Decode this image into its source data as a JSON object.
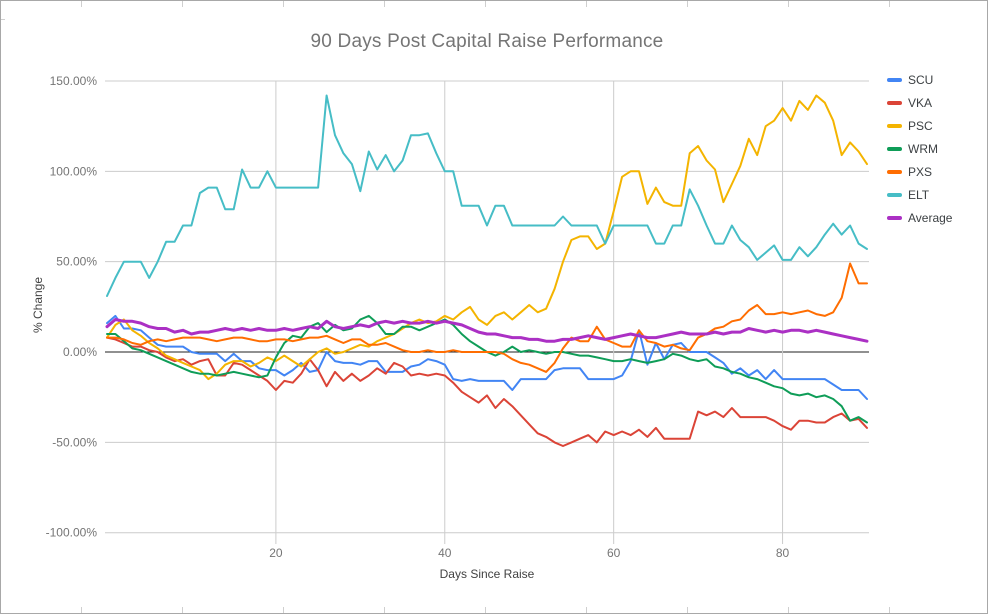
{
  "window": {
    "background": "#ffffff",
    "border_color": "#a8a8a8"
  },
  "chart": {
    "title": "90 Days Post Capital Raise Performance",
    "x_axis_title": "Days Since Raise",
    "y_axis_title": "% Change"
  },
  "colors": {
    "gridline": "#cccccc",
    "zero_line": "#212121",
    "title_text": "#757575",
    "tick_text": "#757575",
    "axis_title_text": "#424242",
    "legend_text": "#3c4043"
  },
  "chart_data": {
    "type": "line",
    "title": "90 Days Post Capital Raise Performance",
    "xlabel": "Days Since Raise",
    "ylabel": "% Change",
    "xlim": [
      0,
      90
    ],
    "ylim": [
      -100,
      150
    ],
    "x_start": 0,
    "x_step": 1,
    "grid": true,
    "legend_position": "right",
    "x_ticks": [
      {
        "value": 20,
        "label": "20"
      },
      {
        "value": 40,
        "label": "40"
      },
      {
        "value": 60,
        "label": "60"
      },
      {
        "value": 80,
        "label": "80"
      }
    ],
    "y_ticks": [
      {
        "value": 150,
        "label": "150.00%"
      },
      {
        "value": 100,
        "label": "100.00%"
      },
      {
        "value": 50,
        "label": "50.00%"
      },
      {
        "value": 0,
        "label": "0.00%"
      },
      {
        "value": -50,
        "label": "-50.00%"
      },
      {
        "value": -100,
        "label": "-100.00%"
      }
    ],
    "series": [
      {
        "name": "SCU",
        "color": "#4285F4",
        "width": 2,
        "values": [
          16,
          20,
          13,
          13,
          12,
          8,
          4,
          3,
          3,
          3,
          0,
          -1,
          -1,
          -1,
          -5,
          -1,
          -5,
          -5,
          -9,
          -10,
          -10,
          -13,
          -10,
          -6,
          -11,
          -10,
          0,
          -5,
          -6,
          -6,
          -7,
          -5,
          -5,
          -11,
          -11,
          -11,
          -8,
          -7,
          -4,
          -5,
          -7,
          -15,
          -16,
          -15,
          -16,
          -16,
          -16,
          -16,
          -21,
          -15,
          -15,
          -15,
          -15,
          -10,
          -9,
          -9,
          -9,
          -15,
          -15,
          -15,
          -15,
          -13,
          -5,
          12,
          -7,
          5,
          -4,
          4,
          5,
          0,
          0,
          0,
          -3,
          -6,
          -12,
          -9,
          -13,
          -10,
          -15,
          -10,
          -15,
          -15,
          -15,
          -15,
          -15,
          -15,
          -18,
          -21,
          -21,
          -21,
          -26
        ]
      },
      {
        "name": "VKA",
        "color": "#DB4437",
        "width": 2,
        "values": [
          8,
          7,
          5,
          3,
          3,
          1,
          0,
          -3,
          -5,
          -4,
          -7,
          -5,
          -4,
          -13,
          -13,
          -6,
          -7,
          -10,
          -13,
          -16,
          -21,
          -16,
          -17,
          -12,
          -4,
          -10,
          -19,
          -11,
          -16,
          -12,
          -16,
          -13,
          -9,
          -12,
          -6,
          -8,
          -13,
          -12,
          -13,
          -12,
          -13,
          -17,
          -22,
          -25,
          -28,
          -24,
          -31,
          -26,
          -30,
          -35,
          -40,
          -45,
          -47,
          -50,
          -52,
          -50,
          -48,
          -46,
          -50,
          -44,
          -46,
          -44,
          -46,
          -43,
          -47,
          -42,
          -48,
          -48,
          -48,
          -48,
          -33,
          -35,
          -33,
          -36,
          -31,
          -36,
          -36,
          -36,
          -36,
          -38,
          -41,
          -43,
          -38,
          -38,
          -39,
          -39,
          -36,
          -34,
          -38,
          -37,
          -42
        ]
      },
      {
        "name": "PSC",
        "color": "#F4B400",
        "width": 2,
        "values": [
          8,
          15,
          18,
          12,
          9,
          5,
          2,
          -2,
          -4,
          -6,
          -8,
          -10,
          -15,
          -12,
          -7,
          -5,
          -5,
          -8,
          -6,
          -3,
          -5,
          -2,
          -5,
          -8,
          -4,
          0,
          2,
          -1,
          0,
          2,
          4,
          3,
          6,
          8,
          10,
          13,
          16,
          18,
          16,
          17,
          20,
          18,
          22,
          25,
          18,
          15,
          20,
          22,
          18,
          22,
          26,
          22,
          24,
          35,
          50,
          62,
          64,
          64,
          57,
          60,
          78,
          97,
          100,
          100,
          82,
          91,
          83,
          81,
          81,
          110,
          114,
          106,
          101,
          83,
          93,
          103,
          118,
          109,
          125,
          128,
          135,
          128,
          139,
          134,
          142,
          138,
          128,
          109,
          116,
          111,
          104
        ]
      },
      {
        "name": "WRM",
        "color": "#0F9D58",
        "width": 2,
        "values": [
          10,
          10,
          6,
          2,
          1,
          -1,
          -3,
          -5,
          -7,
          -9,
          -11,
          -12,
          -12,
          -13,
          -12,
          -11,
          -12,
          -13,
          -14,
          -13,
          -3,
          5,
          9,
          8,
          14,
          16,
          11,
          15,
          12,
          13,
          18,
          20,
          16,
          10,
          10,
          14,
          14,
          12,
          14,
          16,
          18,
          15,
          10,
          6,
          3,
          0,
          -2,
          0,
          3,
          0,
          1,
          0,
          -1,
          0,
          0,
          -1,
          -2,
          -2,
          -3,
          -4,
          -5,
          -5,
          -4,
          -5,
          -6,
          -5,
          -4,
          -1,
          -2,
          -4,
          -5,
          -4,
          -8,
          -9,
          -11,
          -12,
          -14,
          -15,
          -17,
          -19,
          -20,
          -23,
          -24,
          -23,
          -25,
          -24,
          -26,
          -30,
          -38,
          -36,
          -39
        ]
      },
      {
        "name": "PXS",
        "color": "#FF6D01",
        "width": 2,
        "values": [
          8,
          8,
          7,
          5,
          4,
          6,
          7,
          6,
          7,
          8,
          8,
          8,
          7,
          6,
          7,
          8,
          8,
          7,
          6,
          6,
          7,
          7,
          6,
          7,
          8,
          8,
          9,
          7,
          5,
          7,
          7,
          4,
          4,
          5,
          3,
          1,
          0,
          0,
          1,
          0,
          0,
          1,
          0,
          0,
          0,
          0,
          0,
          -1,
          -4,
          -6,
          -7,
          -9,
          -11,
          -6,
          2,
          8,
          6,
          6,
          14,
          7,
          5,
          3,
          3,
          12,
          6,
          5,
          3,
          4,
          2,
          1,
          8,
          10,
          13,
          14,
          17,
          18,
          23,
          26,
          21,
          21,
          22,
          21,
          22,
          23,
          21,
          20,
          22,
          30,
          49,
          38,
          38
        ]
      },
      {
        "name": "ELT",
        "color": "#46BDC6",
        "width": 2,
        "values": [
          31,
          41,
          50,
          50,
          50,
          41,
          50,
          61,
          61,
          70,
          70,
          88,
          91,
          91,
          79,
          79,
          101,
          91,
          91,
          100,
          91,
          91,
          91,
          91,
          91,
          91,
          142,
          120,
          110,
          104,
          89,
          111,
          101,
          109,
          100,
          106,
          120,
          120,
          121,
          110,
          100,
          100,
          81,
          81,
          81,
          70,
          81,
          81,
          70,
          70,
          70,
          70,
          70,
          70,
          75,
          70,
          70,
          70,
          70,
          60,
          70,
          70,
          70,
          70,
          70,
          60,
          60,
          70,
          70,
          90,
          81,
          70,
          60,
          60,
          70,
          62,
          58,
          51,
          55,
          59,
          51,
          51,
          58,
          53,
          58,
          65,
          71,
          65,
          70,
          60,
          57
        ]
      },
      {
        "name": "Average",
        "color": "#AB30C4",
        "width": 3,
        "values": [
          14,
          18,
          17,
          17,
          16,
          14,
          13,
          13,
          11,
          12,
          10,
          11,
          11,
          12,
          13,
          12,
          13,
          12,
          13,
          12,
          12,
          13,
          12,
          13,
          14,
          13,
          17,
          14,
          13,
          14,
          15,
          14,
          16,
          17,
          16,
          17,
          16,
          16,
          17,
          16,
          17,
          16,
          15,
          13,
          11,
          10,
          10,
          9,
          8,
          8,
          7,
          7,
          6,
          6,
          7,
          7,
          8,
          9,
          8,
          7,
          8,
          9,
          10,
          9,
          8,
          8,
          9,
          10,
          11,
          10,
          10,
          10,
          11,
          10,
          11,
          11,
          13,
          12,
          11,
          12,
          11,
          12,
          12,
          11,
          12,
          11,
          10,
          9,
          8,
          7,
          6
        ]
      }
    ]
  }
}
